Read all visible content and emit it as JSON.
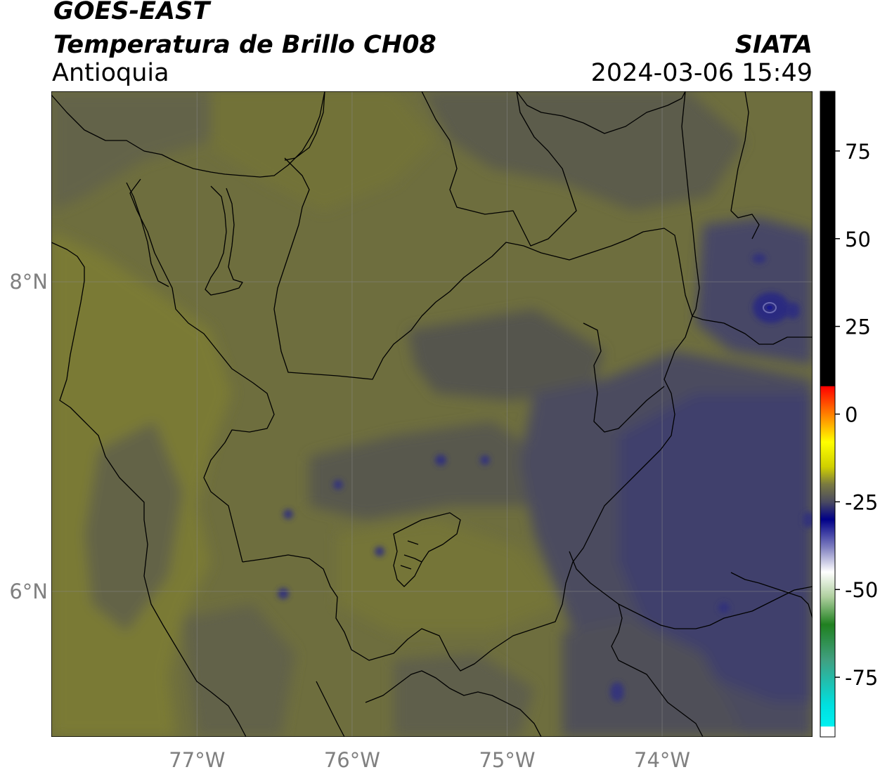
{
  "header": {
    "satellite": "GOES-EAST",
    "product": "Temperatura de Brillo CH08",
    "region": "Antioquia",
    "organization": "SIATA",
    "timestamp": "2024-03-06 15:49"
  },
  "map": {
    "lon_range": [
      -77.94,
      -73.03
    ],
    "lat_range": [
      5.06,
      9.23
    ],
    "lon_ticks": [
      {
        "value": -77,
        "label": "77°W"
      },
      {
        "value": -76,
        "label": "76°W"
      },
      {
        "value": -75,
        "label": "75°W"
      },
      {
        "value": -74,
        "label": "74°W"
      }
    ],
    "lat_ticks": [
      {
        "value": 8,
        "label": "8°N"
      },
      {
        "value": 6,
        "label": "6°N"
      }
    ],
    "gridlines": true,
    "colors": {
      "warm_olive": "#7a7a34",
      "olive": "#6e6e3e",
      "gray_olive": "#62624a",
      "gray": "#52524e",
      "slate": "#484862",
      "blue_slate": "#3c3c6e",
      "navy": "#24247c"
    }
  },
  "colorbar": {
    "ticks": [
      {
        "value": 75,
        "label": "75"
      },
      {
        "value": 50,
        "label": "50"
      },
      {
        "value": 25,
        "label": "25"
      },
      {
        "value": 0,
        "label": "0"
      },
      {
        "value": -25,
        "label": "-25"
      },
      {
        "value": -50,
        "label": "-50"
      },
      {
        "value": -75,
        "label": "-75"
      }
    ],
    "range": [
      -92,
      92
    ],
    "stops": [
      {
        "value": 92,
        "color": "#000000"
      },
      {
        "value": 8,
        "color": "#000000"
      },
      {
        "value": 7.9,
        "color": "#ff0000"
      },
      {
        "value": 0,
        "color": "#ff7f00"
      },
      {
        "value": -8,
        "color": "#ffff00"
      },
      {
        "value": -15,
        "color": "#d0d000"
      },
      {
        "value": -20,
        "color": "#7a7a40"
      },
      {
        "value": -25,
        "color": "#4a4a60"
      },
      {
        "value": -30,
        "color": "#000088"
      },
      {
        "value": -38,
        "color": "#8080c0"
      },
      {
        "value": -45,
        "color": "#ffffff"
      },
      {
        "value": -52,
        "color": "#b0d0a0"
      },
      {
        "value": -60,
        "color": "#208020"
      },
      {
        "value": -70,
        "color": "#40a080"
      },
      {
        "value": -83,
        "color": "#00e0e0"
      },
      {
        "value": -89,
        "color": "#00f0f0"
      },
      {
        "value": -89.1,
        "color": "#ffffff"
      },
      {
        "value": -92,
        "color": "#ffffff"
      }
    ]
  }
}
